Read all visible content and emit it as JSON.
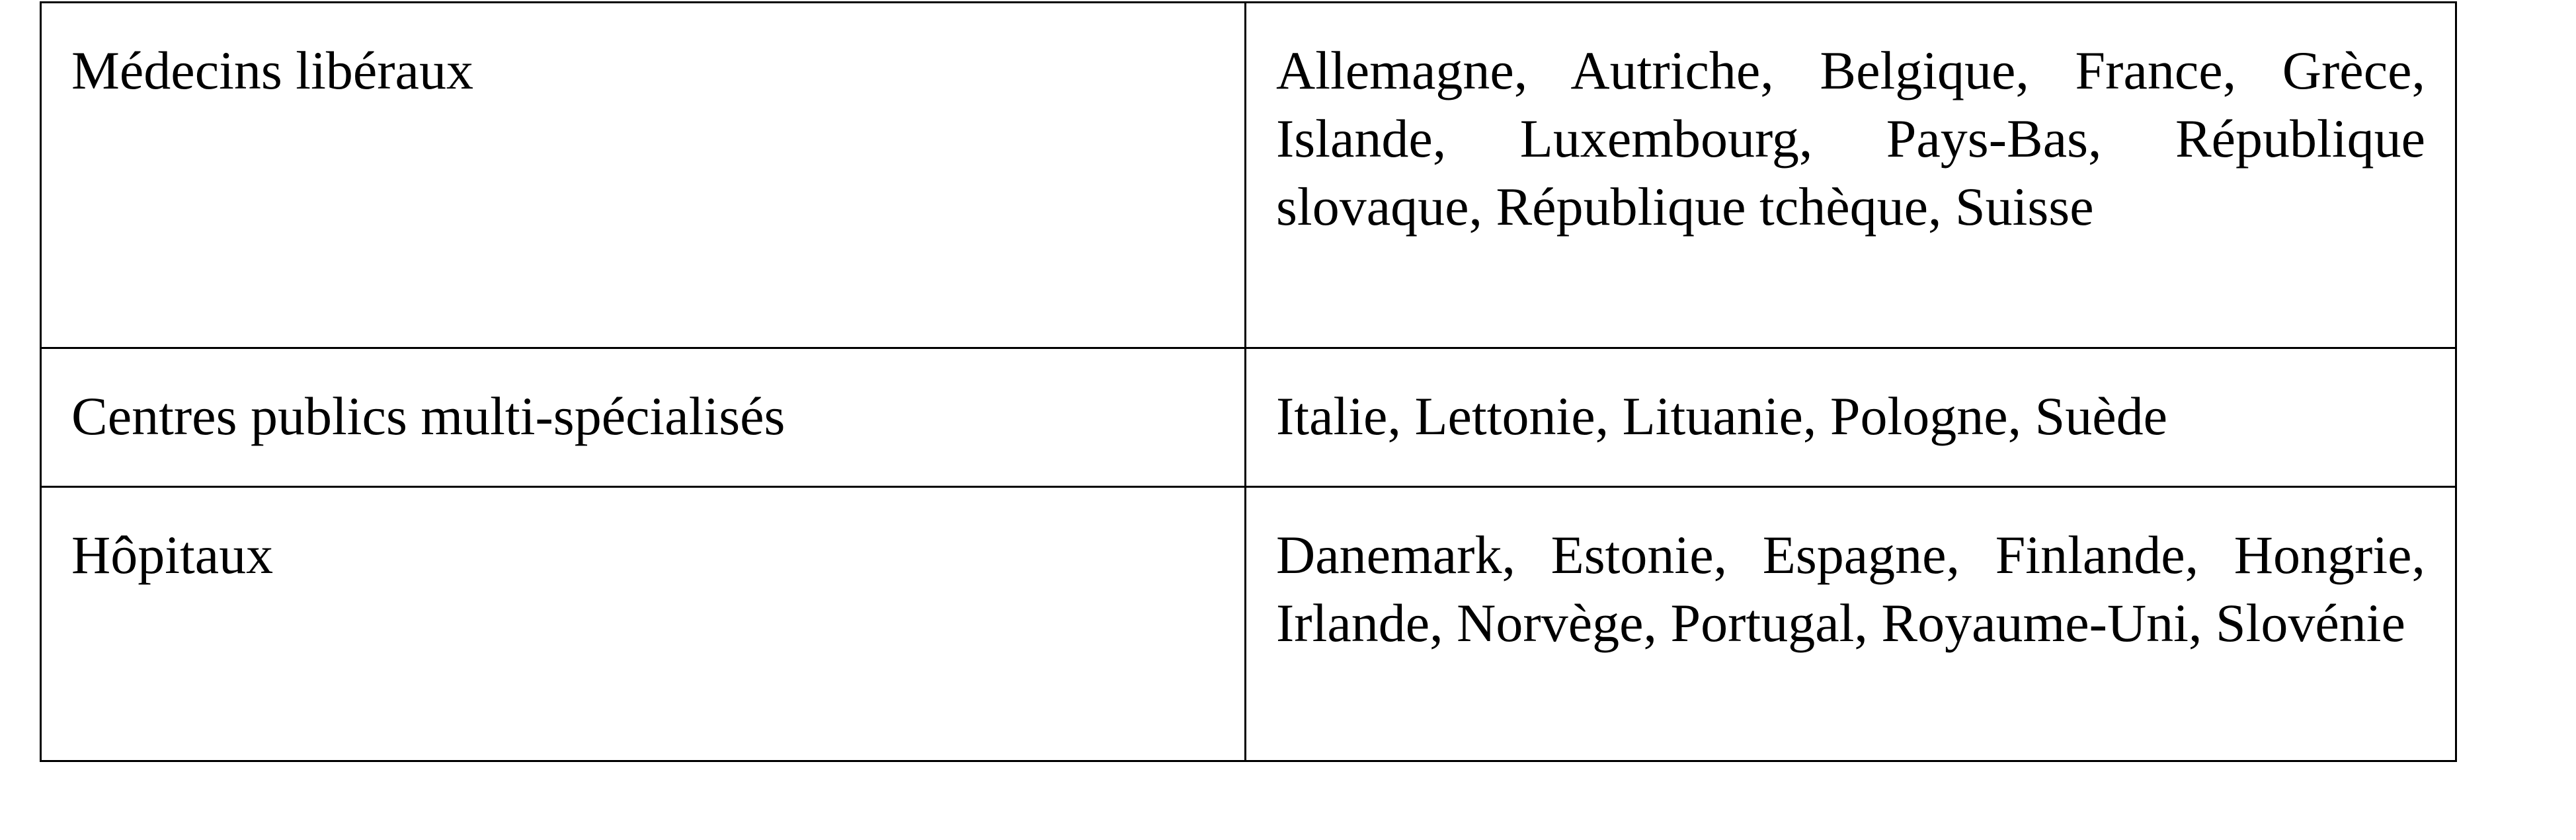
{
  "table": {
    "rows": [
      {
        "category": "Médecins libéraux",
        "countries": "Allemagne, Autriche, Belgique, France, Grèce, Islande, Luxembourg, Pays-Bas, République slovaque, République tchèque, Suisse"
      },
      {
        "category": "Centres publics multi-spécialisés",
        "countries": "Italie, Lettonie, Lituanie, Pologne, Suède"
      },
      {
        "category": "Hôpitaux",
        "countries": "Danemark, Estonie, Espagne, Finlande, Hongrie, Irlande, Norvège, Portugal, Royaume-Uni, Slovénie"
      }
    ]
  }
}
